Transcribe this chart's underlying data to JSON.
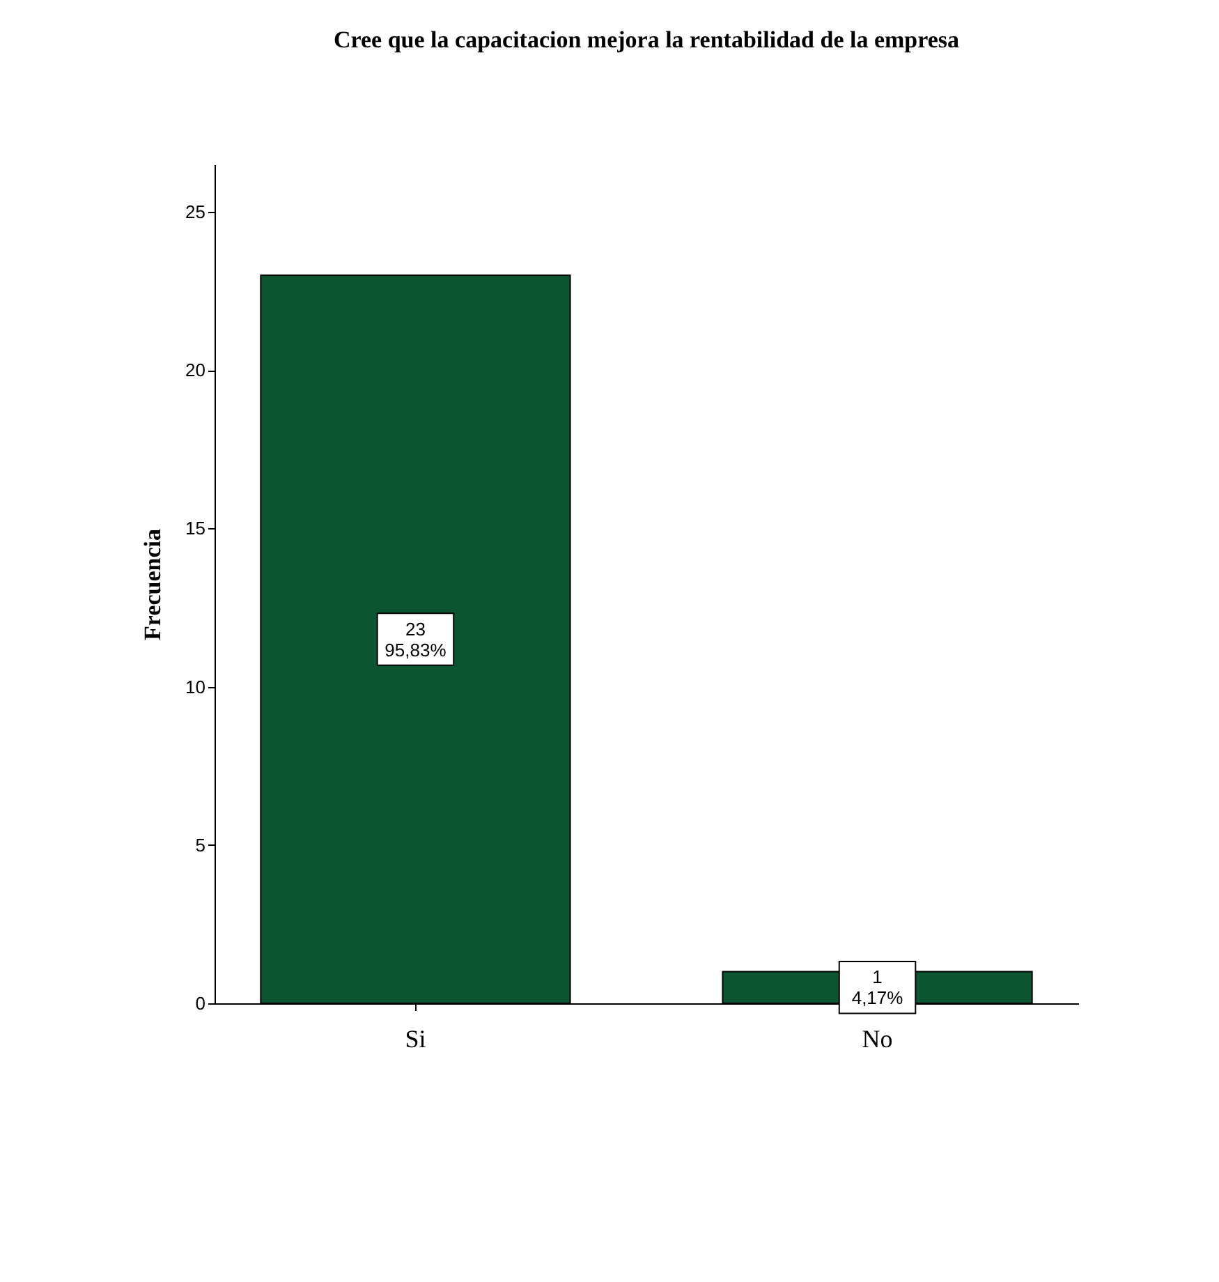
{
  "chart_data": {
    "type": "bar",
    "title": "Cree que la capacitacion mejora la rentabilidad de la empresa",
    "ylabel": "Frecuencia",
    "categories": [
      "Si",
      "No"
    ],
    "values": [
      23,
      1
    ],
    "value_labels": [
      "23\n95,83%",
      "1\n4,17%"
    ],
    "color": "#0b5530",
    "ylim": [
      0,
      26.5
    ],
    "yticks": [
      0,
      5,
      10,
      15,
      20,
      25
    ],
    "grid": false
  }
}
